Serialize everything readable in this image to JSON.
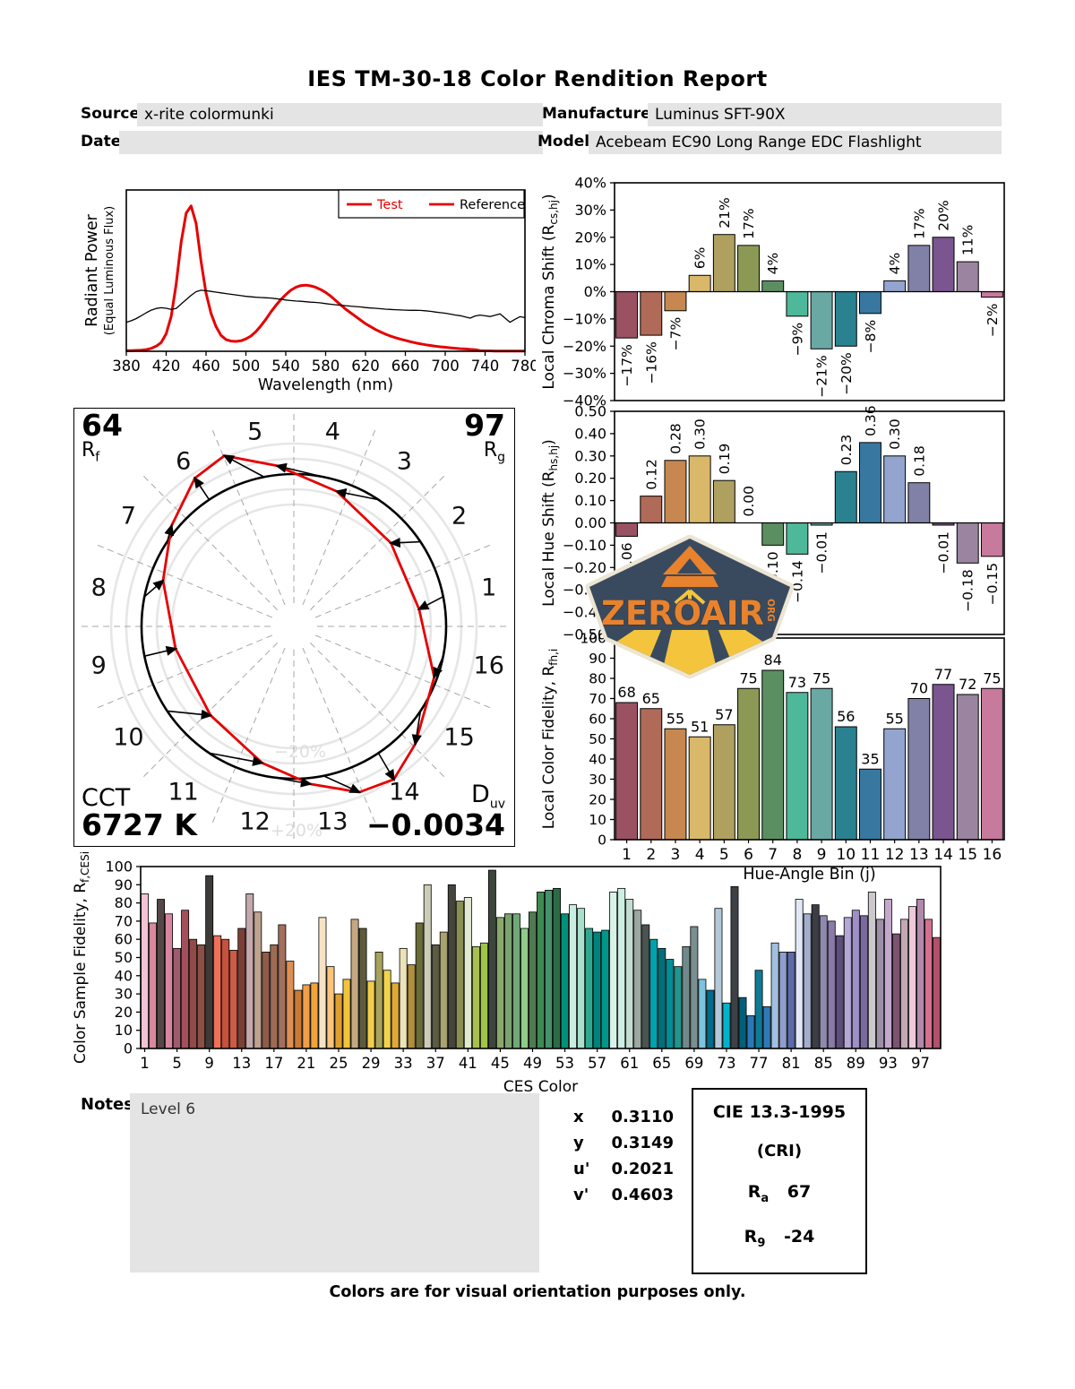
{
  "header": {
    "title": "IES TM-30-18 Color Rendition Report",
    "source_label": "Source:",
    "source_value": "x-rite colormunki",
    "date_label": "Date:",
    "date_value": "",
    "manufacturer_label": "Manufacturer:",
    "manufacturer_value": "Luminus SFT-90X",
    "model_label": "Model:",
    "model_value": "Acebeam EC90 Long Range EDC Flashlight"
  },
  "colors": {
    "test_red": "#e60000",
    "reference_black": "#000000",
    "field_gray": "#e4e4e4",
    "bin_colors": [
      "#9a5262",
      "#b06a58",
      "#c68850",
      "#d9b86a",
      "#b0a060",
      "#8a9a55",
      "#5b8f62",
      "#4eb89a",
      "#6aa8a4",
      "#2a8290",
      "#3878a0",
      "#93a5ce",
      "#8181a8",
      "#7a5590",
      "#9a84a0",
      "#c87a9c"
    ],
    "ces_colors": [
      "#f2c3d5",
      "#d8899d",
      "#554746",
      "#d886a0",
      "#9d5c6c",
      "#a34f5c",
      "#8f4a4a",
      "#8a5045",
      "#3d3a38",
      "#f27058",
      "#c4523d",
      "#cc5c45",
      "#7a4038",
      "#c3a8ad",
      "#bfa38f",
      "#8f5c49",
      "#9e6b52",
      "#a3705c",
      "#e08f52",
      "#cc7a33",
      "#f29e45",
      "#f2a339",
      "#f7e3c4",
      "#fcc478",
      "#e09e2e",
      "#f2c439",
      "#c4a882",
      "#5c5c3d",
      "#f2cc4a",
      "#a8a35c",
      "#f2d44a",
      "#e0a838",
      "#ede3b8",
      "#b08f3d",
      "#6b6b3a",
      "#ccccb8",
      "#5c5c45",
      "#a8a370",
      "#45453d",
      "#8a8f54",
      "#e0ead1",
      "#a8bf52",
      "#9ec44a",
      "#3d453d",
      "#8aa86b",
      "#7aa370",
      "#70a878",
      "#8fcc8a",
      "#4f7a52",
      "#3d8a52",
      "#45916b",
      "#2e6b45",
      "#00917a",
      "#c9ede0",
      "#a8e0cc",
      "#2ea891",
      "#00827a",
      "#00968a",
      "#d9f2e8",
      "#cceee3",
      "#c4ddd1",
      "#9ea8a3",
      "#4a5450",
      "#00a3ad",
      "#00707a",
      "#008f96",
      "#20968f",
      "#708a8a",
      "#7a8f8f",
      "#7ac4e0",
      "#006b8a",
      "#b3c9d9",
      "#00b3cc",
      "#3d4045",
      "#00607a",
      "#2979b8",
      "#0f7a96",
      "#2e7ab8",
      "#a3bfe0",
      "#8f9ecc",
      "#5c6ba8",
      "#e3e8f7",
      "#a3aecc",
      "#3d3d45",
      "#8f8aad",
      "#8a7aa8",
      "#5c4f7a",
      "#b3a8d4",
      "#9e8fc4",
      "#7a6b9e",
      "#ccc9cc",
      "#9e8fa8",
      "#c4a8cc",
      "#7a5470",
      "#c4a8b3",
      "#edc9d9",
      "#b388ad",
      "#d4708f",
      "#b3506b"
    ]
  },
  "chart_data": [
    {
      "id": "spd",
      "type": "line",
      "xlabel": "Wavelength (nm)",
      "ylabel_line1": "Radiant Power",
      "ylabel_line2": "(Equal Luminous Flux)",
      "xlim": [
        380,
        780
      ],
      "ylim": [
        0,
        1.11
      ],
      "xticks": [
        380,
        420,
        460,
        500,
        540,
        580,
        620,
        660,
        700,
        740,
        780
      ],
      "legend": [
        {
          "label": "Test",
          "line_color": "#e60000",
          "label_color": "#e60000"
        },
        {
          "label": "Reference",
          "line_color": "#e60000",
          "label_color": "#000000"
        }
      ],
      "series": [
        {
          "name": "Test",
          "color": "#e60000",
          "width": 3,
          "x_start": 380,
          "x_step": 5,
          "y": [
            0.005,
            0.005,
            0.006,
            0.008,
            0.012,
            0.02,
            0.035,
            0.06,
            0.12,
            0.24,
            0.46,
            0.75,
            0.95,
            1.0,
            0.88,
            0.62,
            0.4,
            0.26,
            0.17,
            0.11,
            0.08,
            0.07,
            0.068,
            0.072,
            0.085,
            0.105,
            0.135,
            0.175,
            0.22,
            0.27,
            0.315,
            0.355,
            0.39,
            0.42,
            0.44,
            0.452,
            0.455,
            0.45,
            0.44,
            0.425,
            0.405,
            0.38,
            0.35,
            0.32,
            0.29,
            0.265,
            0.24,
            0.215,
            0.19,
            0.17,
            0.15,
            0.133,
            0.118,
            0.105,
            0.094,
            0.084,
            0.075,
            0.066,
            0.058,
            0.051,
            0.045,
            0.04,
            0.035,
            0.031,
            0.028,
            0.024,
            0.021,
            0.018,
            0.016,
            0.013,
            0.011,
            0.005,
            0.003,
            0.003,
            0.002,
            0.002,
            0.002,
            0.002,
            0.002,
            0.002,
            0.002
          ]
        },
        {
          "name": "Reference",
          "color": "#000000",
          "width": 1.3,
          "x_start": 380,
          "x_step": 5,
          "y": [
            0.2,
            0.21,
            0.225,
            0.245,
            0.265,
            0.283,
            0.295,
            0.3,
            0.296,
            0.288,
            0.295,
            0.325,
            0.355,
            0.385,
            0.41,
            0.42,
            0.417,
            0.412,
            0.407,
            0.402,
            0.397,
            0.392,
            0.388,
            0.383,
            0.378,
            0.375,
            0.372,
            0.37,
            0.368,
            0.366,
            0.362,
            0.358,
            0.353,
            0.349,
            0.346,
            0.344,
            0.341,
            0.338,
            0.336,
            0.333,
            0.328,
            0.324,
            0.32,
            0.317,
            0.314,
            0.311,
            0.308,
            0.305,
            0.301,
            0.298,
            0.296,
            0.293,
            0.29,
            0.288,
            0.286,
            0.284,
            0.283,
            0.282,
            0.282,
            0.281,
            0.279,
            0.275,
            0.27,
            0.266,
            0.262,
            0.256,
            0.25,
            0.245,
            0.237,
            0.228,
            0.243,
            0.249,
            0.244,
            0.239,
            0.248,
            0.258,
            0.228,
            0.2,
            0.22,
            0.238,
            0.232
          ]
        }
      ]
    },
    {
      "id": "local_chroma_shift",
      "type": "bar",
      "ylabel_parts": [
        "Local Chroma Shift (R",
        "cs,hj",
        ")"
      ],
      "ylim": [
        -40,
        40
      ],
      "ytick_values": [
        40,
        30,
        20,
        10,
        0,
        -10,
        -20,
        -30,
        -40
      ],
      "ytick_labels": [
        "40%",
        "30%",
        "20%",
        "10%",
        "0%",
        "−10%",
        "−20%",
        "−30%",
        "−40%"
      ],
      "categories": [
        1,
        2,
        3,
        4,
        5,
        6,
        7,
        8,
        9,
        10,
        11,
        12,
        13,
        14,
        15,
        16
      ],
      "values": [
        -17,
        -16,
        -7,
        6,
        21,
        17,
        4,
        -9,
        -21,
        -20,
        -8,
        4,
        17,
        20,
        11,
        -2
      ],
      "labels": [
        "−17%",
        "−16%",
        "−7%",
        "6%",
        "21%",
        "17%",
        "4%",
        "−9%",
        "−21%",
        "−20%",
        "−8%",
        "4%",
        "17%",
        "20%",
        "11%",
        "−2%"
      ]
    },
    {
      "id": "local_hue_shift",
      "type": "bar",
      "ylabel_parts": [
        "Local Hue Shift (R",
        "hs,hj",
        ")"
      ],
      "ylim": [
        -0.5,
        0.5
      ],
      "ytick_values": [
        0.5,
        0.4,
        0.3,
        0.2,
        0.1,
        0,
        -0.1,
        -0.2,
        -0.3,
        -0.4,
        -0.5
      ],
      "ytick_labels": [
        "0.50",
        "0.40",
        "0.30",
        "0.20",
        "0.10",
        "0.00",
        "−0.10",
        "−0.20",
        "−0.30",
        "−0.40",
        "−0.50"
      ],
      "categories": [
        1,
        2,
        3,
        4,
        5,
        6,
        7,
        8,
        9,
        10,
        11,
        12,
        13,
        14,
        15,
        16
      ],
      "values": [
        -0.06,
        0.12,
        0.28,
        0.3,
        0.19,
        0.0,
        -0.1,
        -0.14,
        -0.01,
        0.23,
        0.36,
        0.3,
        0.18,
        -0.01,
        -0.18,
        -0.15
      ],
      "labels": [
        "−0.06",
        "0.12",
        "0.28",
        "0.30",
        "0.19",
        "0.00",
        "−0.10",
        "−0.14",
        "−0.01",
        "0.23",
        "0.36",
        "0.30",
        "0.18",
        "−0.01",
        "−0.18",
        "−0.15"
      ]
    },
    {
      "id": "local_color_fidelity",
      "type": "bar",
      "ylabel_parts": [
        "Local Color Fidelity, R",
        "fh,i",
        ""
      ],
      "xlabel": "Hue-Angle Bin (j)",
      "ylim": [
        0,
        100
      ],
      "ytick_values": [
        100,
        90,
        80,
        70,
        60,
        50,
        40,
        30,
        20,
        10,
        0
      ],
      "ytick_labels": [
        "100",
        "90",
        "80",
        "70",
        "60",
        "50",
        "40",
        "30",
        "20",
        "10",
        "0"
      ],
      "categories": [
        "1",
        "2",
        "3",
        "4",
        "5",
        "6",
        "7",
        "8",
        "9",
        "10",
        "11",
        "12",
        "13",
        "14",
        "15",
        "16"
      ],
      "values": [
        68,
        65,
        55,
        51,
        57,
        75,
        84,
        73,
        75,
        56,
        35,
        55,
        70,
        77,
        72,
        75
      ],
      "labels": [
        "68",
        "65",
        "55",
        "51",
        "57",
        "75",
        "84",
        "73",
        "75",
        "56",
        "35",
        "55",
        "70",
        "77",
        "72",
        "75"
      ]
    },
    {
      "id": "ces_sample_fidelity",
      "type": "bar",
      "ylabel_parts": [
        "Color Sample Fidelity, R",
        "f,CESi",
        ""
      ],
      "xlabel": "CES Color",
      "ylim": [
        0,
        100
      ],
      "ytick_values": [
        100,
        90,
        80,
        70,
        60,
        50,
        40,
        30,
        20,
        10,
        0
      ],
      "ytick_labels": [
        "100",
        "90",
        "80",
        "70",
        "60",
        "50",
        "40",
        "30",
        "20",
        "10",
        "0"
      ],
      "xtick_labels": [
        "1",
        "5",
        "9",
        "13",
        "17",
        "21",
        "25",
        "29",
        "33",
        "37",
        "41",
        "45",
        "49",
        "53",
        "57",
        "61",
        "65",
        "69",
        "73",
        "77",
        "81",
        "85",
        "89",
        "93",
        "97"
      ],
      "xtick_indices": [
        0,
        4,
        8,
        12,
        16,
        20,
        24,
        28,
        32,
        36,
        40,
        44,
        48,
        52,
        56,
        60,
        64,
        68,
        72,
        76,
        80,
        84,
        88,
        92,
        96
      ],
      "values": [
        85,
        69,
        82,
        74,
        55,
        76,
        60,
        57,
        95,
        62,
        60,
        54,
        66,
        85,
        75,
        53,
        57,
        68,
        48,
        32,
        35,
        36,
        72,
        45,
        30,
        38,
        71,
        66,
        37,
        53,
        43,
        36,
        55,
        46,
        69,
        90,
        57,
        64,
        90,
        81,
        83,
        56,
        58,
        98,
        72,
        74,
        74,
        66,
        75,
        86,
        87,
        88,
        74,
        79,
        77,
        66,
        64,
        65,
        86,
        88,
        82,
        76,
        68,
        60,
        55,
        49,
        45,
        56,
        67,
        38,
        32,
        77,
        25,
        89,
        28,
        18,
        43,
        23,
        58,
        53,
        53,
        82,
        74,
        79,
        73,
        70,
        62,
        72,
        76,
        73,
        86,
        71,
        82,
        63,
        71,
        78,
        82,
        71,
        61
      ]
    },
    {
      "id": "color_vector_graphic",
      "type": "polar-vector",
      "rf_value": "64",
      "rf_label": [
        "R",
        "f"
      ],
      "rg_value": "97",
      "rg_label": [
        "R",
        "g"
      ],
      "cct_label": "CCT",
      "cct_value": "6727 K",
      "duv_label": [
        "D",
        "uv"
      ],
      "duv_value": "−0.0034",
      "ring_labels": [
        "−20%",
        "+20%"
      ],
      "bin_numbers": [
        "1",
        "2",
        "3",
        "4",
        "5",
        "6",
        "7",
        "8",
        "9",
        "10",
        "11",
        "12",
        "13",
        "14",
        "15",
        "16"
      ],
      "reference_color": "#000000",
      "test_color": "#e60000"
    }
  ],
  "notes": {
    "label": "Notes:",
    "value": "Level 6"
  },
  "coords": {
    "rows": [
      {
        "label": "x",
        "value": "0.3110"
      },
      {
        "label": "y",
        "value": "0.3149"
      },
      {
        "label": "u'",
        "value": "0.2021"
      },
      {
        "label": "v'",
        "value": "0.4603"
      }
    ]
  },
  "cri_box": {
    "title": "CIE 13.3-1995",
    "subtitle": "(CRI)",
    "rows": [
      {
        "label": "R",
        "sub": "a",
        "value": "67"
      },
      {
        "label": "R",
        "sub": "9",
        "value": "-24"
      }
    ]
  },
  "footer": "Colors are for visual orientation purposes only.",
  "logo": {
    "text": "ZEROAIR",
    "suffix": "ORG"
  }
}
